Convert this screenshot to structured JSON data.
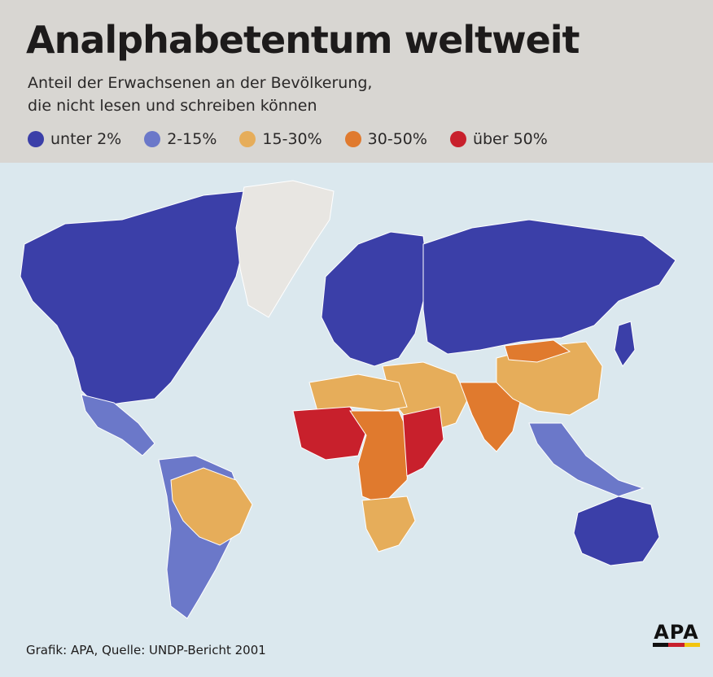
{
  "title": "Analphabetentum weltweit",
  "subtitle_line1": "Anteil der Erwachsenen an der Bevölkerung,",
  "subtitle_line2": "die nicht lesen und schreiben können",
  "legend": [
    {
      "label": "unter 2%",
      "color": "#3b3fa8"
    },
    {
      "label": "2-15%",
      "color": "#6b78c9"
    },
    {
      "label": "15-30%",
      "color": "#e6ad5a"
    },
    {
      "label": "30-50%",
      "color": "#e07a2e"
    },
    {
      "label": "über 50%",
      "color": "#c8202c"
    }
  ],
  "no_data_color": "#e8e6e2",
  "source": "Grafik: APA, Quelle: UNDP-Bericht 2001",
  "logo": "APA",
  "regions": [
    {
      "name": "North America",
      "category": "unter 2%"
    },
    {
      "name": "Greenland",
      "category": "no data"
    },
    {
      "name": "Mexico and Central America",
      "category": "2-15%"
    },
    {
      "name": "South America",
      "category": "2-15%"
    },
    {
      "name": "Brazil",
      "category": "15-30%"
    },
    {
      "name": "Europe",
      "category": "unter 2%"
    },
    {
      "name": "Russia",
      "category": "unter 2%"
    },
    {
      "name": "Middle East",
      "category": "15-30%"
    },
    {
      "name": "North Africa",
      "category": "15-30%"
    },
    {
      "name": "West Africa",
      "category": "über 50%"
    },
    {
      "name": "Central Africa",
      "category": "30-50%"
    },
    {
      "name": "East Africa",
      "category": "über 50%"
    },
    {
      "name": "Southern Africa",
      "category": "15-30%"
    },
    {
      "name": "South Asia",
      "category": "30-50%"
    },
    {
      "name": "China",
      "category": "15-30%"
    },
    {
      "name": "Mongolia",
      "category": "30-50%"
    },
    {
      "name": "Japan",
      "category": "unter 2%"
    },
    {
      "name": "Southeast Asia",
      "category": "2-15%"
    },
    {
      "name": "Australia",
      "category": "unter 2%"
    }
  ]
}
